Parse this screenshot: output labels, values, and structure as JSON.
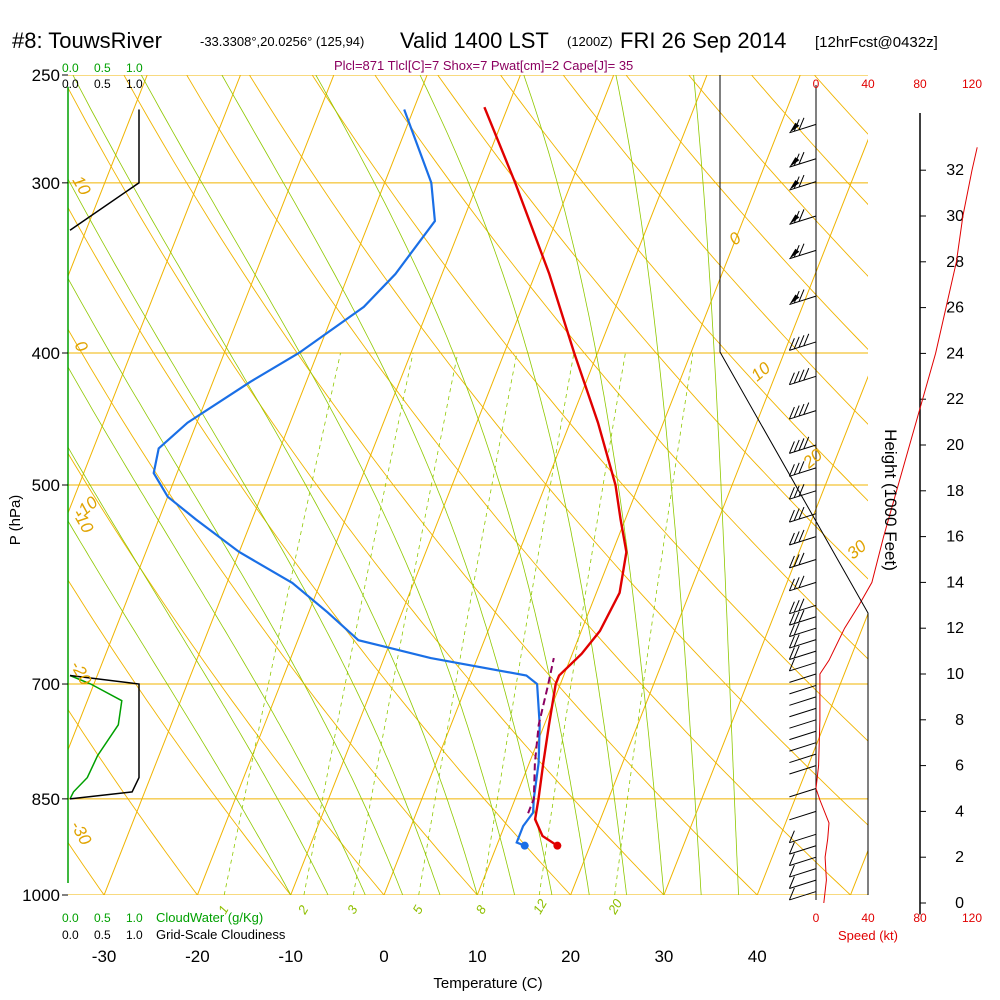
{
  "header": {
    "station": "#8: TouwsRiver",
    "coords": "-33.3308°,20.0256° (125,94)",
    "valid": "Valid 1400 LST",
    "zulu": "(1200Z)",
    "date": "FRI 26 Sep 2014",
    "forecast": "[12hrFcst@0432z]"
  },
  "indices_text": "Plcl=871 Tlcl[C]=7 Shox=7 Pwat[cm]=2 Cape[J]= 35",
  "labels": {
    "pressure_axis": "P (hPa)",
    "temperature_axis": "Temperature (C)",
    "height_axis": "Height (1000 Feet)",
    "speed_axis": "Speed (kt)",
    "cloudwater": "CloudWater (g/Kg)",
    "cloudiness": "Grid-Scale Cloudiness"
  },
  "colors": {
    "isotherm": "#f0b400",
    "dry_adiabat": "#f0b400",
    "moist_adiabat": "#8fc800",
    "mixing_ratio": "#8fc800",
    "temperature": "#e00000",
    "dewpoint": "#1a6fe6",
    "parcel": "#8b0060",
    "cloudwater": "#00a000",
    "speed": "#e00000"
  },
  "chart_data": {
    "type": "line",
    "title": "",
    "xlabel": "Temperature (C)",
    "ylabel": "P (hPa)",
    "xlim": [
      -35,
      52
    ],
    "pressure_ticks": [
      250,
      300,
      400,
      500,
      700,
      850,
      1000
    ],
    "temperature_ticks": [
      -30,
      -20,
      -10,
      0,
      10,
      20,
      30,
      40
    ],
    "isotherm_labels": [
      {
        "text": "-10",
        "t": -10
      },
      {
        "text": "0",
        "t": 0
      },
      {
        "text": "10",
        "t": 10
      },
      {
        "text": "20",
        "t": 20
      },
      {
        "text": "30",
        "t": 30
      }
    ],
    "mixing_ratio_labels": [
      "1",
      "2",
      "3",
      "5",
      "8",
      "12",
      "20"
    ],
    "series": [
      {
        "name": "Temperature",
        "points": [
          [
            920,
            16.5
          ],
          [
            905,
            14.5
          ],
          [
            880,
            13.0
          ],
          [
            850,
            12.5
          ],
          [
            800,
            11.5
          ],
          [
            750,
            10.5
          ],
          [
            700,
            9.5
          ],
          [
            690,
            9.5
          ],
          [
            665,
            11.0
          ],
          [
            640,
            12.0
          ],
          [
            600,
            12.5
          ],
          [
            560,
            11.5
          ],
          [
            530,
            9.5
          ],
          [
            500,
            7.5
          ],
          [
            450,
            3.0
          ],
          [
            400,
            -2.5
          ],
          [
            350,
            -8.5
          ],
          [
            300,
            -16.0
          ],
          [
            264,
            -22.5
          ]
        ]
      },
      {
        "name": "Dewpoint",
        "points": [
          [
            920,
            13.0
          ],
          [
            915,
            12.0
          ],
          [
            890,
            12.0
          ],
          [
            870,
            12.5
          ],
          [
            850,
            12.0
          ],
          [
            800,
            11.0
          ],
          [
            750,
            9.5
          ],
          [
            700,
            7.5
          ],
          [
            690,
            6.0
          ],
          [
            670,
            -5.0
          ],
          [
            650,
            -13.5
          ],
          [
            620,
            -18.0
          ],
          [
            590,
            -23.0
          ],
          [
            560,
            -30.0
          ],
          [
            530,
            -36.0
          ],
          [
            510,
            -40.0
          ],
          [
            490,
            -42.5
          ],
          [
            470,
            -43.0
          ],
          [
            450,
            -41.0
          ],
          [
            420,
            -36.0
          ],
          [
            400,
            -32.0
          ],
          [
            370,
            -27.0
          ],
          [
            350,
            -25.0
          ],
          [
            320,
            -23.0
          ],
          [
            300,
            -25.0
          ],
          [
            265,
            -31.0
          ]
        ]
      },
      {
        "name": "Parcel",
        "points": [
          [
            871,
            12.0
          ],
          [
            850,
            12.0
          ],
          [
            800,
            10.6
          ],
          [
            750,
            9.4
          ],
          [
            700,
            8.7
          ],
          [
            670,
            8.2
          ]
        ]
      }
    ],
    "cloudwater": {
      "axis_ticks": [
        "0.0",
        "0.5",
        "1.0"
      ],
      "points": [
        [
          690,
          0.0
        ],
        [
          700,
          0.3
        ],
        [
          720,
          0.75
        ],
        [
          750,
          0.7
        ],
        [
          790,
          0.4
        ],
        [
          820,
          0.25
        ],
        [
          840,
          0.05
        ],
        [
          850,
          0.0
        ]
      ]
    },
    "cloudiness": {
      "axis_ticks": [
        "0.0",
        "0.5",
        "1.0"
      ],
      "layers": [
        {
          "points": [
            [
              325,
              0.0
            ],
            [
              300,
              1.0
            ],
            [
              265,
              1.0
            ]
          ]
        },
        {
          "points": [
            [
              690,
              0.0
            ],
            [
              700,
              1.0
            ],
            [
              820,
              1.0
            ],
            [
              840,
              0.9
            ],
            [
              850,
              0.0
            ]
          ]
        }
      ]
    },
    "height_ticks_kft": [
      0,
      2,
      4,
      6,
      8,
      10,
      12,
      14,
      16,
      18,
      20,
      22,
      24,
      26,
      28,
      30,
      32
    ],
    "speed_ticks_kt": [
      0,
      40,
      80,
      120
    ],
    "speed_profile": [
      [
        0,
        6
      ],
      [
        1,
        8
      ],
      [
        2,
        7
      ],
      [
        2.8,
        9
      ],
      [
        3.5,
        10
      ],
      [
        4.5,
        3
      ],
      [
        5,
        0
      ],
      [
        6,
        2
      ],
      [
        8,
        3
      ],
      [
        10,
        3
      ],
      [
        10.6,
        10
      ],
      [
        12,
        22
      ],
      [
        13,
        33
      ],
      [
        14,
        43
      ],
      [
        16,
        52
      ],
      [
        18,
        62
      ],
      [
        20,
        72
      ],
      [
        22,
        82
      ],
      [
        24,
        92
      ],
      [
        26,
        100
      ],
      [
        28,
        108
      ],
      [
        30,
        113
      ],
      [
        32,
        120
      ],
      [
        33,
        124
      ]
    ],
    "wind_barbs": [
      {
        "kft": 0.5,
        "barbs": 1
      },
      {
        "kft": 1.0,
        "barbs": 1
      },
      {
        "kft": 1.5,
        "barbs": 1
      },
      {
        "kft": 2.0,
        "barbs": 1
      },
      {
        "kft": 2.5,
        "barbs": 1
      },
      {
        "kft": 3.0,
        "barbs": 1
      },
      {
        "kft": 4.0,
        "barbs": 0
      },
      {
        "kft": 5.0,
        "barbs": 0
      },
      {
        "kft": 6.0,
        "barbs": 0
      },
      {
        "kft": 6.5,
        "barbs": 0
      },
      {
        "kft": 7.0,
        "barbs": 0
      },
      {
        "kft": 7.5,
        "barbs": 0
      },
      {
        "kft": 8.0,
        "barbs": 0
      },
      {
        "kft": 8.5,
        "barbs": 0
      },
      {
        "kft": 9.0,
        "barbs": 0
      },
      {
        "kft": 9.5,
        "barbs": 0
      },
      {
        "kft": 10.0,
        "barbs": 0
      },
      {
        "kft": 10.5,
        "barbs": 1
      },
      {
        "kft": 11.0,
        "barbs": 2
      },
      {
        "kft": 11.5,
        "barbs": 2
      },
      {
        "kft": 12.0,
        "barbs": 2
      },
      {
        "kft": 12.5,
        "barbs": 3
      },
      {
        "kft": 13.0,
        "barbs": 3
      },
      {
        "kft": 14.0,
        "barbs": 3
      },
      {
        "kft": 15.0,
        "barbs": 3
      },
      {
        "kft": 16.0,
        "barbs": 3
      },
      {
        "kft": 17.0,
        "barbs": 3
      },
      {
        "kft": 18.0,
        "barbs": 3
      },
      {
        "kft": 19.0,
        "barbs": 3
      },
      {
        "kft": 20.0,
        "barbs": 4
      },
      {
        "kft": 21.5,
        "barbs": 4
      },
      {
        "kft": 23.0,
        "barbs": 4
      },
      {
        "kft": 24.5,
        "barbs": 4
      },
      {
        "kft": 26.5,
        "barbs": 2,
        "pennant": true
      },
      {
        "kft": 28.5,
        "barbs": 2,
        "pennant": true
      },
      {
        "kft": 30.0,
        "barbs": 2,
        "pennant": true
      },
      {
        "kft": 31.5,
        "barbs": 2,
        "pennant": true
      },
      {
        "kft": 32.5,
        "barbs": 2,
        "pennant": true
      },
      {
        "kft": 34.0,
        "barbs": 2,
        "pennant": true
      }
    ]
  }
}
